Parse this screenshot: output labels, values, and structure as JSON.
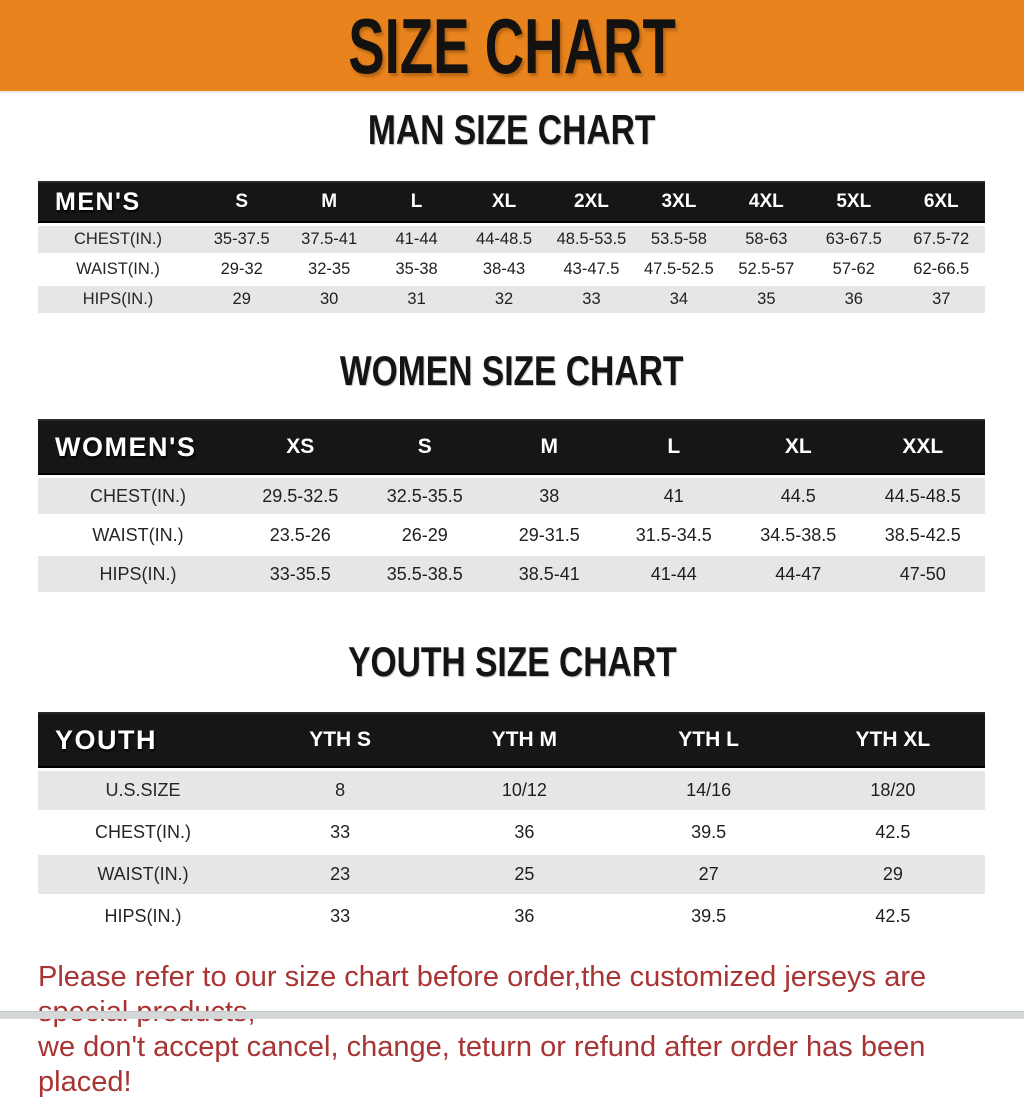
{
  "banner": {
    "title": "SIZE CHART",
    "bg_color": "#E8831D",
    "text_color": "#141210"
  },
  "chart_data": [
    {
      "type": "table",
      "title": "MAN SIZE CHART",
      "header_label": "MEN'S",
      "columns": [
        "S",
        "M",
        "L",
        "XL",
        "2XL",
        "3XL",
        "4XL",
        "5XL",
        "6XL"
      ],
      "rows": [
        {
          "label": "CHEST(IN.)",
          "values": [
            "35-37.5",
            "37.5-41",
            "41-44",
            "44-48.5",
            "48.5-53.5",
            "53.5-58",
            "58-63",
            "63-67.5",
            "67.5-72"
          ]
        },
        {
          "label": "WAIST(IN.)",
          "values": [
            "29-32",
            "32-35",
            "35-38",
            "38-43",
            "43-47.5",
            "47.5-52.5",
            "52.5-57",
            "57-62",
            "62-66.5"
          ]
        },
        {
          "label": "HIPS(IN.)",
          "values": [
            "29",
            "30",
            "31",
            "32",
            "33",
            "34",
            "35",
            "36",
            "37"
          ]
        }
      ]
    },
    {
      "type": "table",
      "title": "WOMEN SIZE CHART",
      "header_label": "WOMEN'S",
      "columns": [
        "XS",
        "S",
        "M",
        "L",
        "XL",
        "XXL"
      ],
      "rows": [
        {
          "label": "CHEST(IN.)",
          "values": [
            "29.5-32.5",
            "32.5-35.5",
            "38",
            "41",
            "44.5",
            "44.5-48.5"
          ]
        },
        {
          "label": "WAIST(IN.)",
          "values": [
            "23.5-26",
            "26-29",
            "29-31.5",
            "31.5-34.5",
            "34.5-38.5",
            "38.5-42.5"
          ]
        },
        {
          "label": "HIPS(IN.)",
          "values": [
            "33-35.5",
            "35.5-38.5",
            "38.5-41",
            "41-44",
            "44-47",
            "47-50"
          ]
        }
      ]
    },
    {
      "type": "table",
      "title": "YOUTH SIZE CHART",
      "header_label": "YOUTH",
      "columns": [
        "YTH S",
        "YTH M",
        "YTH L",
        "YTH XL"
      ],
      "rows": [
        {
          "label": "U.S.SIZE",
          "values": [
            "8",
            "10/12",
            "14/16",
            "18/20"
          ]
        },
        {
          "label": "CHEST(IN.)",
          "values": [
            "33",
            "36",
            "39.5",
            "42.5"
          ]
        },
        {
          "label": "WAIST(IN.)",
          "values": [
            "23",
            "25",
            "27",
            "29"
          ]
        },
        {
          "label": "HIPS(IN.)",
          "values": [
            "33",
            "36",
            "39.5",
            "42.5"
          ]
        }
      ]
    }
  ],
  "footer_note": {
    "lines": [
      "Please refer to our size chart before order,the customized jerseys are special products,",
      "we don't accept cancel, change, teturn or refund after order has been placed!"
    ],
    "color": "#A93434"
  },
  "style_tokens": {
    "table_header_bg": "#161616",
    "row_stripe_gray": "#E6E6E6",
    "row_stripe_white": "#FFFFFF"
  }
}
